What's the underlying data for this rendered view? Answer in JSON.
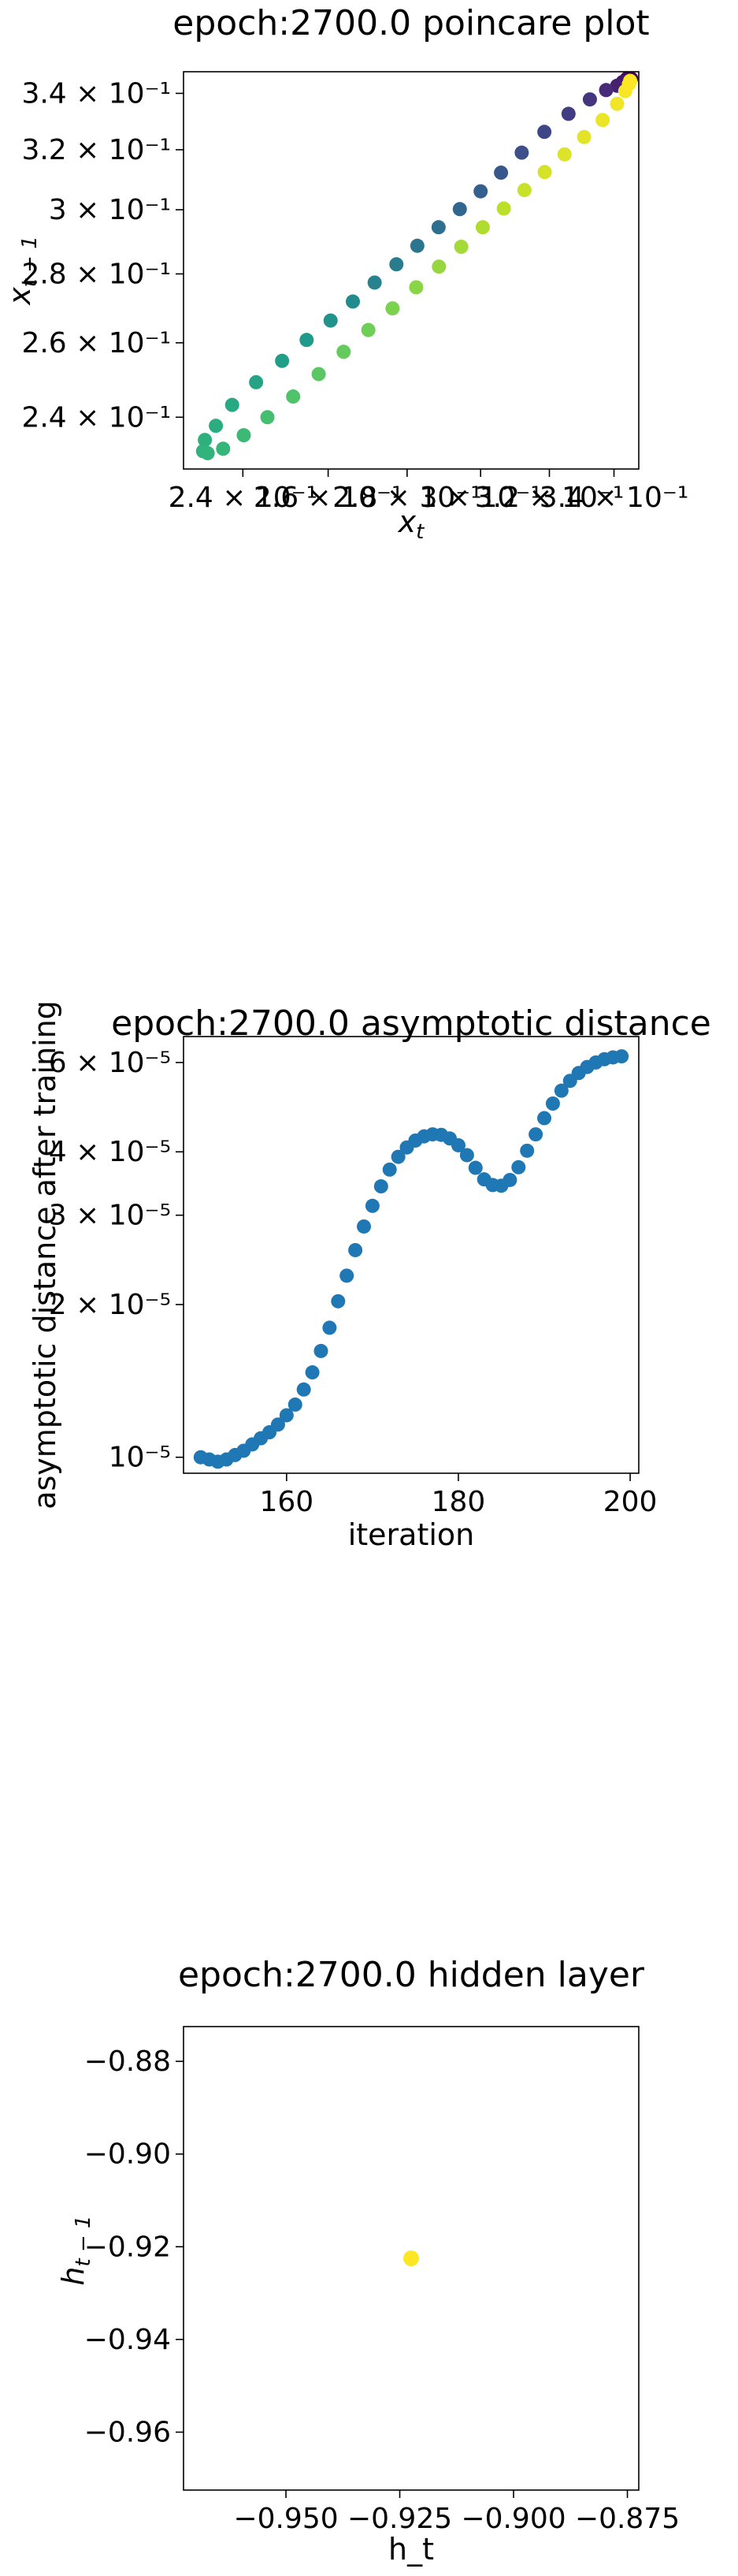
{
  "chart_data": [
    {
      "type": "scatter",
      "title": "epoch:2700.0 poincare plot",
      "xlabel": "x_t",
      "ylabel": "x_{t-1}",
      "xscale": "log",
      "yscale": "log",
      "xlim": [
        0.227,
        0.348
      ],
      "ylim": [
        0.227,
        0.348
      ],
      "grid": false,
      "colormap": "viridis",
      "xticks": [
        "2.4 × 10⁻¹",
        "2.6 × 10⁻¹",
        "2.8 × 10⁻¹",
        "3 × 10⁻¹",
        "3.2 × 10⁻¹",
        "3.4 × 10⁻¹"
      ],
      "yticks": [
        "3.4 × 10⁻¹",
        "3.2 × 10⁻¹",
        "3 × 10⁻¹",
        "2.8 × 10⁻¹",
        "2.6 × 10⁻¹",
        "2.4 × 10⁻¹"
      ],
      "xtick_values": [
        0.24,
        0.26,
        0.28,
        0.3,
        0.32,
        0.34
      ],
      "ytick_values": [
        0.34,
        0.32,
        0.3,
        0.28,
        0.26,
        0.24
      ],
      "points": [
        {
          "x": 0.3455,
          "y": 0.3455,
          "c": 0.0
        },
        {
          "x": 0.3442,
          "y": 0.3455,
          "c": 0.03
        },
        {
          "x": 0.3428,
          "y": 0.3442,
          "c": 0.06
        },
        {
          "x": 0.341,
          "y": 0.3428,
          "c": 0.09
        },
        {
          "x": 0.3375,
          "y": 0.3412,
          "c": 0.12
        },
        {
          "x": 0.3324,
          "y": 0.3378,
          "c": 0.15
        },
        {
          "x": 0.3258,
          "y": 0.3326,
          "c": 0.18
        },
        {
          "x": 0.3185,
          "y": 0.3262,
          "c": 0.21
        },
        {
          "x": 0.3118,
          "y": 0.319,
          "c": 0.24
        },
        {
          "x": 0.3058,
          "y": 0.3122,
          "c": 0.27
        },
        {
          "x": 0.3,
          "y": 0.306,
          "c": 0.3
        },
        {
          "x": 0.2942,
          "y": 0.3002,
          "c": 0.33
        },
        {
          "x": 0.2884,
          "y": 0.2944,
          "c": 0.36
        },
        {
          "x": 0.2827,
          "y": 0.2886,
          "c": 0.39
        },
        {
          "x": 0.2772,
          "y": 0.2829,
          "c": 0.42
        },
        {
          "x": 0.2716,
          "y": 0.2774,
          "c": 0.45
        },
        {
          "x": 0.2661,
          "y": 0.2718,
          "c": 0.48
        },
        {
          "x": 0.2606,
          "y": 0.2663,
          "c": 0.51
        },
        {
          "x": 0.2548,
          "y": 0.2608,
          "c": 0.54
        },
        {
          "x": 0.249,
          "y": 0.255,
          "c": 0.56
        },
        {
          "x": 0.243,
          "y": 0.2492,
          "c": 0.58
        },
        {
          "x": 0.2376,
          "y": 0.2432,
          "c": 0.6
        },
        {
          "x": 0.234,
          "y": 0.2378,
          "c": 0.62
        },
        {
          "x": 0.2316,
          "y": 0.2342,
          "c": 0.63
        },
        {
          "x": 0.2312,
          "y": 0.2314,
          "c": 0.64
        },
        {
          "x": 0.2322,
          "y": 0.2309,
          "c": 0.65
        },
        {
          "x": 0.2356,
          "y": 0.232,
          "c": 0.66
        },
        {
          "x": 0.2402,
          "y": 0.2354,
          "c": 0.68
        },
        {
          "x": 0.2456,
          "y": 0.24,
          "c": 0.7
        },
        {
          "x": 0.2516,
          "y": 0.2454,
          "c": 0.72
        },
        {
          "x": 0.2577,
          "y": 0.2514,
          "c": 0.74
        },
        {
          "x": 0.2638,
          "y": 0.2575,
          "c": 0.76
        },
        {
          "x": 0.27,
          "y": 0.2636,
          "c": 0.78
        },
        {
          "x": 0.2762,
          "y": 0.2698,
          "c": 0.8
        },
        {
          "x": 0.2824,
          "y": 0.276,
          "c": 0.82
        },
        {
          "x": 0.2885,
          "y": 0.2822,
          "c": 0.84
        },
        {
          "x": 0.2946,
          "y": 0.2883,
          "c": 0.86
        },
        {
          "x": 0.3006,
          "y": 0.2944,
          "c": 0.88
        },
        {
          "x": 0.3066,
          "y": 0.3004,
          "c": 0.9
        },
        {
          "x": 0.3126,
          "y": 0.3064,
          "c": 0.92
        },
        {
          "x": 0.3186,
          "y": 0.3124,
          "c": 0.94
        },
        {
          "x": 0.3246,
          "y": 0.3184,
          "c": 0.95
        },
        {
          "x": 0.3306,
          "y": 0.3244,
          "c": 0.96
        },
        {
          "x": 0.3364,
          "y": 0.3304,
          "c": 0.97
        },
        {
          "x": 0.341,
          "y": 0.3362,
          "c": 0.98
        },
        {
          "x": 0.3436,
          "y": 0.3408,
          "c": 0.99
        },
        {
          "x": 0.3448,
          "y": 0.3434,
          "c": 1.0
        },
        {
          "x": 0.3452,
          "y": 0.3446,
          "c": 1.0
        }
      ]
    },
    {
      "type": "scatter",
      "title": "epoch:2700.0 asymptotic distance",
      "xlabel": "iteration",
      "ylabel": "asymptotic distance after training",
      "xscale": "linear",
      "yscale": "log",
      "xlim": [
        148,
        201
      ],
      "ylim": [
        9.3e-06,
        6.75e-05
      ],
      "grid": false,
      "color": "#1f77b4",
      "xticks": [
        "160",
        "180",
        "200"
      ],
      "xtick_values": [
        160,
        180,
        200
      ],
      "yticks": [
        "6 × 10⁻⁵",
        "4 × 10⁻⁵",
        "3 × 10⁻⁵",
        "2 × 10⁻⁵",
        "10⁻⁵"
      ],
      "ytick_values": [
        6e-05,
        4e-05,
        3e-05,
        2e-05,
        1e-05
      ],
      "x": [
        150,
        151,
        152,
        153,
        154,
        155,
        156,
        157,
        158,
        159,
        160,
        161,
        162,
        163,
        164,
        165,
        166,
        167,
        168,
        169,
        170,
        171,
        172,
        173,
        174,
        175,
        176,
        177,
        178,
        179,
        180,
        181,
        182,
        183,
        184,
        185,
        186,
        187,
        188,
        189,
        190,
        191,
        192,
        193,
        194,
        195,
        196,
        197,
        198,
        199
      ],
      "values": [
        1e-05,
        9.9e-06,
        9.8e-06,
        9.9e-06,
        1.01e-05,
        1.03e-05,
        1.06e-05,
        1.09e-05,
        1.12e-05,
        1.16e-05,
        1.21e-05,
        1.27e-05,
        1.36e-05,
        1.47e-05,
        1.62e-05,
        1.8e-05,
        2.03e-05,
        2.28e-05,
        2.56e-05,
        2.85e-05,
        3.13e-05,
        3.42e-05,
        3.69e-05,
        3.91e-05,
        4.08e-05,
        4.21e-05,
        4.29e-05,
        4.33e-05,
        4.32e-05,
        4.25e-05,
        4.12e-05,
        3.94e-05,
        3.72e-05,
        3.53e-05,
        3.44e-05,
        3.43e-05,
        3.52e-05,
        3.73e-05,
        4.02e-05,
        4.33e-05,
        4.66e-05,
        4.98e-05,
        5.28e-05,
        5.52e-05,
        5.72e-05,
        5.88e-05,
        6e-05,
        6.09e-05,
        6.14e-05,
        6.17e-05
      ]
    },
    {
      "type": "scatter",
      "title": "epoch:2700.0 hidden layer",
      "xlabel": "h_t",
      "ylabel": "h_{t-1}",
      "xscale": "linear",
      "yscale": "linear",
      "xlim": [
        -0.9725,
        -0.8725
      ],
      "ylim": [
        -0.9725,
        -0.8725
      ],
      "grid": false,
      "color": "#fde725",
      "xticks": [
        "−0.950",
        "−0.925",
        "−0.900",
        "−0.875"
      ],
      "xtick_values": [
        -0.95,
        -0.925,
        -0.9,
        -0.875
      ],
      "yticks": [
        "−0.88",
        "−0.90",
        "−0.92",
        "−0.94",
        "−0.96"
      ],
      "ytick_values": [
        -0.88,
        -0.9,
        -0.92,
        -0.94,
        -0.96
      ],
      "points": [
        {
          "x": -0.9225,
          "y": -0.9225
        }
      ]
    }
  ]
}
